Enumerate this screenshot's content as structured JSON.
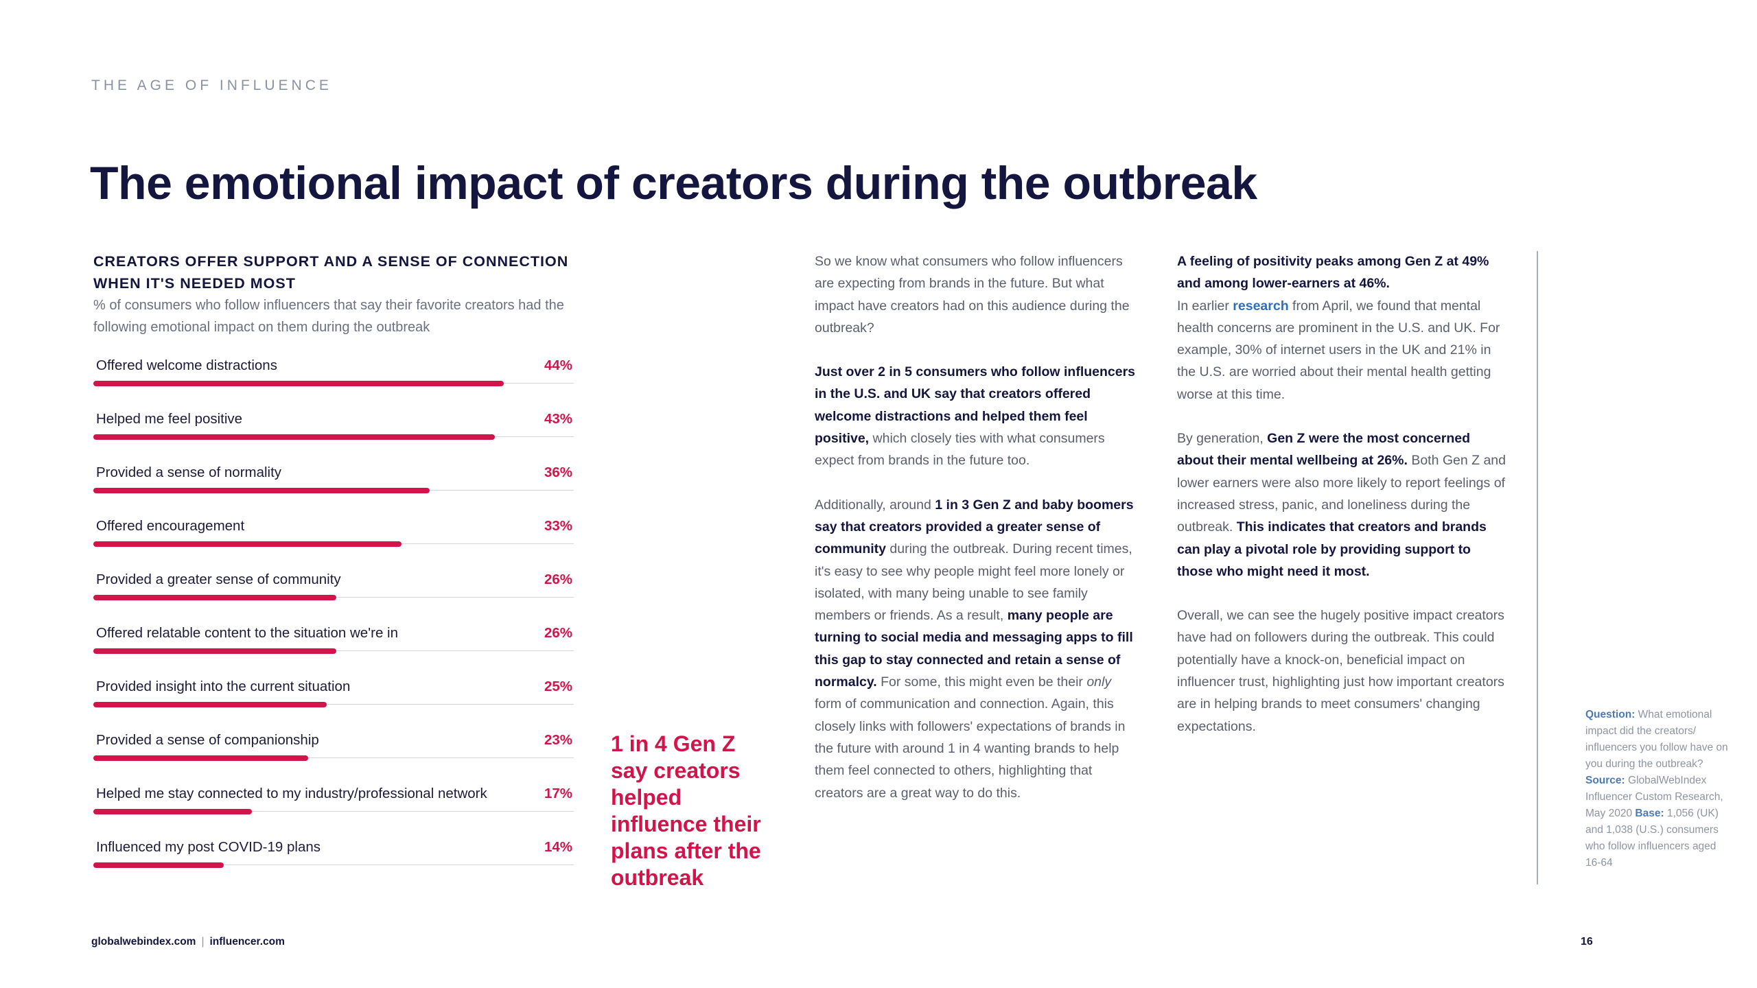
{
  "header": {
    "kicker": "THE AGE OF INFLUENCE",
    "title": "The emotional impact of creators during the outbreak"
  },
  "chart": {
    "heading_line1": "CREATORS OFFER SUPPORT AND A SENSE OF CONNECTION",
    "heading_line2": "WHEN IT'S NEEDED MOST",
    "subtitle": "% of consumers who follow influencers that say their favorite creators had the following emotional impact on them during the outbreak",
    "bar_color": "#d2144b",
    "rows": [
      {
        "label": "Offered welcome distractions",
        "pct": "44%"
      },
      {
        "label": "Helped me feel positive",
        "pct": "43%"
      },
      {
        "label": "Provided a sense of normality",
        "pct": "36%"
      },
      {
        "label": "Offered encouragement",
        "pct": "33%"
      },
      {
        "label": "Provided a greater sense of community",
        "pct": "26%"
      },
      {
        "label": "Offered relatable content to the situation we're in",
        "pct": "26%"
      },
      {
        "label": "Provided insight into the current situation",
        "pct": "25%"
      },
      {
        "label": "Provided a sense of companionship",
        "pct": "23%"
      },
      {
        "label": "Helped me stay connected to my industry/professional network",
        "pct": "17%"
      },
      {
        "label": "Influenced my post COVID-19 plans",
        "pct": "14%"
      }
    ]
  },
  "chart_data": {
    "type": "bar",
    "orientation": "horizontal",
    "title": "CREATORS OFFER SUPPORT AND A SENSE OF CONNECTION WHEN IT'S NEEDED MOST",
    "xlabel": "",
    "ylabel": "",
    "categories": [
      "Offered welcome distractions",
      "Helped me feel positive",
      "Provided a sense of normality",
      "Offered encouragement",
      "Provided a greater sense of community",
      "Offered relatable content to the situation we're in",
      "Provided insight into the current situation",
      "Provided a sense of companionship",
      "Helped me stay connected to my industry/professional network",
      "Influenced my post COVID-19 plans"
    ],
    "values": [
      44,
      43,
      36,
      33,
      26,
      26,
      25,
      23,
      17,
      14
    ],
    "xlim": [
      0,
      50
    ]
  },
  "callout": {
    "text": "1 in 4 Gen Z say creators helped influence their plans after the outbreak"
  },
  "col1": {
    "p1": "So we know what consumers who follow influencers are expecting from brands in the future. But what impact have creators had on this audience during the outbreak?",
    "p2_b1": "Just over 2 in 5 consumers who follow influencers in the U.S. and UK say that creators offered welcome distractions and helped them feel positive,",
    "p2_t1": " which closely ties with what consumers expect from brands in the future too.",
    "p3_t1": "Additionally, around ",
    "p3_b1": "1 in 3 Gen Z and baby boomers say that creators provided a greater sense of community",
    "p3_t2": " during the outbreak. During recent times, it's easy to see why people might feel more lonely or isolated, with many being unable to see family members or friends. As a result, ",
    "p3_b2": "many people are turning to social media and messaging apps to fill this gap to stay connected and retain a sense of normalcy.",
    "p3_t3": " For some, this might even be their ",
    "p3_i1": "only",
    "p3_t4": " form of communication and connection. Again, this closely links with followers' expectations of brands in the future with around 1 in 4 wanting brands to help them feel connected to others, highlighting that creators are a great way to do this."
  },
  "col2": {
    "p1_b1": "A feeling of positivity peaks among Gen Z at 49% and among lower-earners at 46%.",
    "p1_t1": "In earlier ",
    "p1_link": "research",
    "p1_t2": " from April, we found that mental health concerns are prominent in the U.S. and UK. For example, 30% of internet users in the UK and 21% in the U.S. are worried about their mental health getting worse at this time.",
    "p2_t1": "By generation, ",
    "p2_b1": "Gen Z were the most concerned about their mental wellbeing at 26%.",
    "p2_t2": " Both Gen Z and lower earners were also more likely to report feelings of increased stress, panic, and loneliness during the outbreak. ",
    "p2_b2": "This indicates that creators and brands can play a pivotal role by providing support to those who might need it most.",
    "p3": "Overall, we can see the hugely positive impact creators have had on followers during the outbreak. This could potentially have a knock-on, beneficial impact on influencer trust, highlighting just how important creators are in helping brands to meet consumers' changing expectations."
  },
  "note": {
    "q_label": "Question:",
    "q_text": " What emotional impact did the creators/ influencers you follow have on you during the outbreak? ",
    "s_label": "Source:",
    "s_text": " GlobalWebIndex Influencer Custom Research, May 2020 ",
    "b_label": "Base:",
    "b_text": " 1,056 (UK) and 1,038 (U.S.) consumers who follow influencers aged 16-64"
  },
  "footer": {
    "site1": "globalwebindex.com",
    "separator": "|",
    "site2": "influencer.com",
    "page_number": "16"
  }
}
